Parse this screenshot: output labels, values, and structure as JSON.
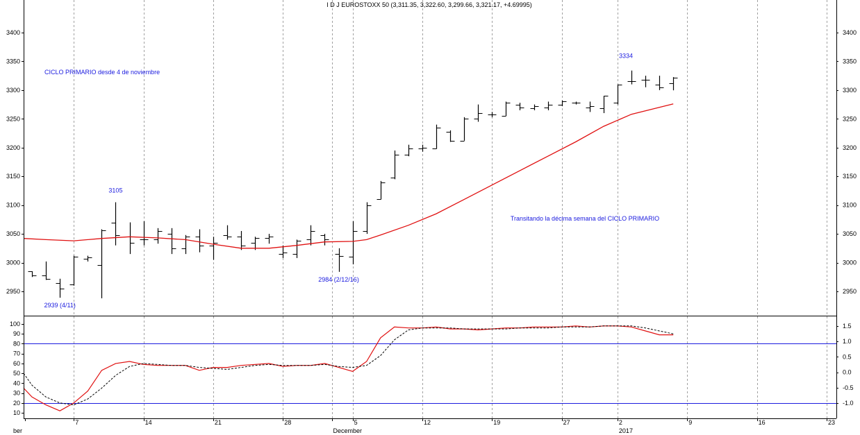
{
  "chart_data": [
    {
      "type": "candlestick",
      "title": "I D J EUROSTOXX 50 (3,311.35, 3,322.60, 3,299.66, 3,321.17, +4.69995)",
      "ylim": [
        2925,
        3440
      ],
      "yticks": [
        2950,
        3000,
        3050,
        3100,
        3150,
        3200,
        3250,
        3300,
        3350,
        3400
      ],
      "xaxis": {
        "labels": [
          {
            "text": "ber",
            "x": -1.5
          },
          {
            "text": "7",
            "x": 2
          },
          {
            "text": "14",
            "x": 7
          },
          {
            "text": "21",
            "x": 12
          },
          {
            "text": "28",
            "x": 17
          },
          {
            "text": "December",
            "x": 20.5
          },
          {
            "text": "5",
            "x": 22
          },
          {
            "text": "12",
            "x": 27
          },
          {
            "text": "19",
            "x": 32
          },
          {
            "text": "27",
            "x": 37
          },
          {
            "text": "2",
            "x": 41
          },
          {
            "text": "2017",
            "x": 41
          },
          {
            "text": "9",
            "x": 46
          },
          {
            "text": "16",
            "x": 51
          },
          {
            "text": "23",
            "x": 56
          }
        ],
        "gridlines": [
          2,
          7,
          12,
          17,
          20.5,
          22,
          27,
          32,
          37,
          41,
          46,
          51,
          56
        ],
        "lim": [
          -1.6,
          56.7
        ]
      },
      "series": [
        {
          "kind": "ohlc",
          "bars": [
            {
              "x": -1,
              "o": 2985,
              "h": 2985,
              "l": 2975,
              "c": 2978
            },
            {
              "x": 0,
              "o": 2978,
              "h": 3002,
              "l": 2970,
              "c": 2972
            },
            {
              "x": 1,
              "o": 2965,
              "h": 2972,
              "l": 2939,
              "c": 2955
            },
            {
              "x": 2,
              "o": 2962,
              "h": 3012,
              "l": 2960,
              "c": 3010
            },
            {
              "x": 3,
              "o": 3007,
              "h": 3012,
              "l": 3002,
              "c": 3009
            },
            {
              "x": 4,
              "o": 2996,
              "h": 3058,
              "l": 2938,
              "c": 3056
            },
            {
              "x": 5,
              "o": 3070,
              "h": 3105,
              "l": 3030,
              "c": 3048
            },
            {
              "x": 6,
              "o": 3045,
              "h": 3070,
              "l": 3015,
              "c": 3035
            },
            {
              "x": 7,
              "o": 3040,
              "h": 3072,
              "l": 3030,
              "c": 3040
            },
            {
              "x": 8,
              "o": 3040,
              "h": 3060,
              "l": 3033,
              "c": 3055
            },
            {
              "x": 9,
              "o": 3050,
              "h": 3060,
              "l": 3015,
              "c": 3025
            },
            {
              "x": 10,
              "o": 3025,
              "h": 3048,
              "l": 3015,
              "c": 3045
            },
            {
              "x": 11,
              "o": 3045,
              "h": 3058,
              "l": 3018,
              "c": 3030
            },
            {
              "x": 12,
              "o": 3030,
              "h": 3045,
              "l": 3005,
              "c": 3035
            },
            {
              "x": 13,
              "o": 3048,
              "h": 3065,
              "l": 3040,
              "c": 3045
            },
            {
              "x": 14,
              "o": 3045,
              "h": 3055,
              "l": 3022,
              "c": 3030
            },
            {
              "x": 15,
              "o": 3035,
              "h": 3045,
              "l": 3022,
              "c": 3043
            },
            {
              "x": 16,
              "o": 3043,
              "h": 3050,
              "l": 3033,
              "c": 3045
            },
            {
              "x": 17,
              "o": 3015,
              "h": 3030,
              "l": 3008,
              "c": 3018
            },
            {
              "x": 18,
              "o": 3015,
              "h": 3040,
              "l": 3008,
              "c": 3038
            },
            {
              "x": 19,
              "o": 3040,
              "h": 3065,
              "l": 3030,
              "c": 3055
            },
            {
              "x": 20,
              "o": 3048,
              "h": 3050,
              "l": 3030,
              "c": 3040
            },
            {
              "x": 21,
              "o": 3015,
              "h": 3025,
              "l": 2984,
              "c": 3012
            },
            {
              "x": 22,
              "o": 3010,
              "h": 3072,
              "l": 2997,
              "c": 3055
            },
            {
              "x": 23,
              "o": 3055,
              "h": 3105,
              "l": 3050,
              "c": 3100
            },
            {
              "x": 24,
              "o": 3110,
              "h": 3142,
              "l": 3110,
              "c": 3140
            },
            {
              "x": 25,
              "o": 3148,
              "h": 3195,
              "l": 3145,
              "c": 3188
            },
            {
              "x": 26,
              "o": 3188,
              "h": 3205,
              "l": 3185,
              "c": 3198
            },
            {
              "x": 27,
              "o": 3198,
              "h": 3205,
              "l": 3193,
              "c": 3200
            },
            {
              "x": 28,
              "o": 3198,
              "h": 3240,
              "l": 3198,
              "c": 3235
            },
            {
              "x": 29,
              "o": 3228,
              "h": 3230,
              "l": 3210,
              "c": 3212
            },
            {
              "x": 30,
              "o": 3212,
              "h": 3253,
              "l": 3212,
              "c": 3250
            },
            {
              "x": 31,
              "o": 3250,
              "h": 3275,
              "l": 3245,
              "c": 3260
            },
            {
              "x": 32,
              "o": 3258,
              "h": 3262,
              "l": 3253,
              "c": 3258
            },
            {
              "x": 33,
              "o": 3255,
              "h": 3280,
              "l": 3255,
              "c": 3278
            },
            {
              "x": 34,
              "o": 3275,
              "h": 3278,
              "l": 3265,
              "c": 3270
            },
            {
              "x": 35,
              "o": 3268,
              "h": 3275,
              "l": 3265,
              "c": 3272
            },
            {
              "x": 36,
              "o": 3270,
              "h": 3280,
              "l": 3265,
              "c": 3275
            },
            {
              "x": 37,
              "o": 3275,
              "h": 3282,
              "l": 3272,
              "c": 3280
            },
            {
              "x": 38,
              "o": 3278,
              "h": 3280,
              "l": 3275,
              "c": 3278
            },
            {
              "x": 39,
              "o": 3270,
              "h": 3280,
              "l": 3262,
              "c": 3272
            },
            {
              "x": 40,
              "o": 3268,
              "h": 3290,
              "l": 3260,
              "c": 3290
            },
            {
              "x": 41,
              "o": 3278,
              "h": 3310,
              "l": 3275,
              "c": 3310
            },
            {
              "x": 42,
              "o": 3315,
              "h": 3334,
              "l": 3310,
              "c": 3315
            },
            {
              "x": 43,
              "o": 3318,
              "h": 3325,
              "l": 3305,
              "c": 3318
            },
            {
              "x": 44,
              "o": 3310,
              "h": 3325,
              "l": 3300,
              "c": 3305
            },
            {
              "x": 45,
              "o": 3311.35,
              "h": 3322.6,
              "l": 3299.66,
              "c": 3321.17
            }
          ]
        },
        {
          "kind": "line",
          "color": "#e01010",
          "x": [
            -1.6,
            0,
            2,
            4,
            6,
            8,
            10,
            12,
            14,
            16,
            18,
            20,
            22,
            23,
            24,
            26,
            28,
            30,
            32,
            34,
            36,
            38,
            40,
            42,
            44,
            45
          ],
          "y": [
            3042,
            3040,
            3038,
            3042,
            3045,
            3043,
            3040,
            3032,
            3025,
            3025,
            3030,
            3036,
            3037,
            3040,
            3048,
            3065,
            3085,
            3110,
            3135,
            3160,
            3185,
            3210,
            3237,
            3258,
            3270,
            3276
          ]
        }
      ],
      "annotations": [
        {
          "text": "3105",
          "x": 5,
          "y": 3105
        },
        {
          "text": "2939 (4/11)",
          "x": 1,
          "y": 2939
        },
        {
          "text": "2984 (2/12/16)",
          "x": 21,
          "y": 2984
        },
        {
          "text": "3334",
          "x": 42,
          "y": 3334
        },
        {
          "text": "CICLO PRIMARIO desde 4 de noviembre",
          "x": 0.5,
          "y": 3330
        },
        {
          "text": "Transitando la décima semana del CICLO PRIMARIO",
          "x": 31,
          "y": 3070
        }
      ]
    },
    {
      "type": "line",
      "ylim": [
        6,
        104
      ],
      "yticks_left": [
        10,
        20,
        30,
        40,
        50,
        60,
        70,
        80,
        90,
        100
      ],
      "yticks_right": [
        -1.0,
        -0.5,
        0.0,
        0.5,
        1.0,
        1.5
      ],
      "hlines": [
        {
          "y": 80,
          "color": "#1a1adf"
        },
        {
          "y": 20,
          "color": "#1a1adf"
        }
      ],
      "series": [
        {
          "style": "solid",
          "color": "#e01010",
          "x": [
            -1.6,
            -1,
            0,
            1,
            2,
            3,
            4,
            5,
            6,
            7,
            8,
            9,
            10,
            11,
            12,
            13,
            14,
            15,
            16,
            17,
            18,
            19,
            20,
            21,
            22,
            23,
            24,
            25,
            26,
            27,
            28,
            29,
            30,
            31,
            32,
            33,
            34,
            35,
            36,
            37,
            38,
            39,
            40,
            41,
            42,
            43,
            44,
            45
          ],
          "y": [
            35,
            26,
            18,
            12,
            20,
            32,
            53,
            60,
            62,
            59,
            58,
            58,
            58,
            53,
            56,
            56,
            58,
            59,
            60,
            57,
            58,
            58,
            60,
            56,
            52,
            62,
            86,
            97,
            96,
            96,
            97,
            95,
            95,
            94,
            95,
            96,
            96,
            97,
            97,
            97,
            98,
            97,
            98,
            98,
            97,
            93,
            89,
            89
          ]
        },
        {
          "style": "dashed",
          "color": "#000000",
          "x": [
            -1.6,
            -1,
            0,
            1,
            2,
            3,
            4,
            5,
            6,
            7,
            8,
            9,
            10,
            11,
            12,
            13,
            14,
            15,
            16,
            17,
            18,
            19,
            20,
            21,
            22,
            23,
            24,
            25,
            26,
            27,
            28,
            29,
            30,
            31,
            32,
            33,
            34,
            35,
            36,
            37,
            38,
            39,
            40,
            41,
            42,
            43,
            44,
            45
          ],
          "y": [
            50,
            38,
            26,
            20,
            18,
            24,
            35,
            48,
            57,
            60,
            59,
            58,
            58,
            56,
            55,
            54,
            56,
            58,
            59,
            58,
            58,
            58,
            59,
            57,
            56,
            58,
            68,
            84,
            94,
            96,
            96,
            96,
            95,
            95,
            95,
            95,
            96,
            96,
            96,
            97,
            97,
            97,
            98,
            98,
            98,
            96,
            93,
            90
          ]
        }
      ]
    }
  ]
}
